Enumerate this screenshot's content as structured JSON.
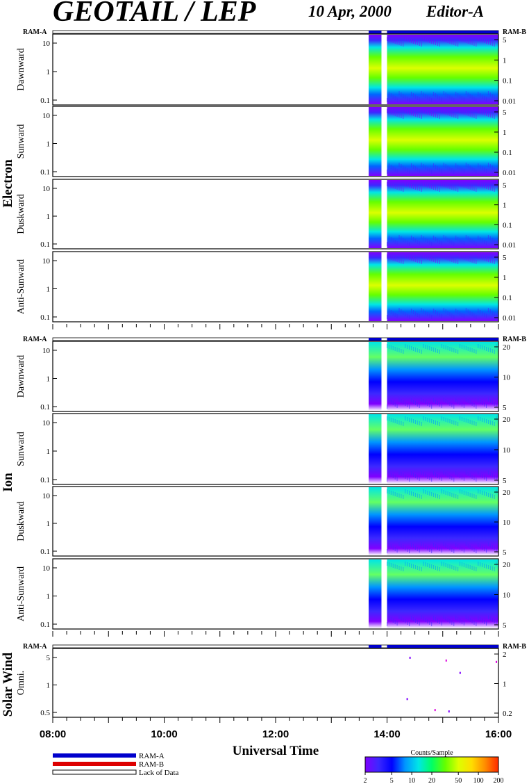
{
  "header": {
    "title": "GEOTAIL / LEP",
    "date": "10 Apr, 2000",
    "editor": "Editor-A"
  },
  "legend": {
    "ram_a": "RAM-A",
    "ram_b": "RAM-B",
    "lack": "Lack of Data",
    "colorbar_title": "Counts/Sample",
    "colorbar_ticks": [
      "2",
      "5",
      "10",
      "20",
      "50",
      "100",
      "200"
    ]
  },
  "colors": {
    "ram_a": "#0000cc",
    "ram_b": "#dd0000",
    "spectrogram_scale": [
      "#7f00ff",
      "#3c28ff",
      "#0000ff",
      "#0096ff",
      "#00e6e6",
      "#00ff64",
      "#64ff00",
      "#dcff00",
      "#ffdc00",
      "#ff8c00",
      "#ff2800"
    ]
  },
  "chart_data": {
    "type": "heatmap",
    "xlabel": "Universal Time",
    "x_ticks": [
      "08:00",
      "10:00",
      "12:00",
      "14:00",
      "16:00"
    ],
    "x_range_hours": [
      8,
      16
    ],
    "data_coverage_hours": [
      [
        13.67,
        13.9
      ],
      [
        14.0,
        16.0
      ]
    ],
    "ram_bar_labels": {
      "left": "RAM-A",
      "right": "RAM-B"
    },
    "groups": [
      {
        "label": "Electron",
        "panels": [
          {
            "label": "Dawnward",
            "left_ticks": [
              "10",
              "1",
              "0.1"
            ],
            "right_ticks": [
              "5",
              "1",
              "0.1",
              "0.01"
            ]
          },
          {
            "label": "Sunward",
            "left_ticks": [
              "10",
              "1",
              "0.1"
            ],
            "right_ticks": [
              "5",
              "1",
              "0.1",
              "0.01"
            ]
          },
          {
            "label": "Duskward",
            "left_ticks": [
              "10",
              "1",
              "0.1"
            ],
            "right_ticks": [
              "5",
              "1",
              "0.1",
              "0.01"
            ]
          },
          {
            "label": "Anti-Sunward",
            "left_ticks": [
              "10",
              "1",
              "0.1"
            ],
            "right_ticks": [
              "5",
              "1",
              "0.1",
              "0.01"
            ]
          }
        ]
      },
      {
        "label": "Ion",
        "panels": [
          {
            "label": "Dawnward",
            "left_ticks": [
              "10",
              "1",
              "0.1"
            ],
            "right_ticks": [
              "20",
              "10",
              "5"
            ]
          },
          {
            "label": "Sunward",
            "left_ticks": [
              "10",
              "1",
              "0.1"
            ],
            "right_ticks": [
              "20",
              "10",
              "5"
            ]
          },
          {
            "label": "Duskward",
            "left_ticks": [
              "10",
              "1",
              "0.1"
            ],
            "right_ticks": [
              "20",
              "10",
              "5"
            ]
          },
          {
            "label": "Anti-Sunward",
            "left_ticks": [
              "10",
              "1",
              "0.1"
            ],
            "right_ticks": [
              "20",
              "10",
              "5"
            ]
          }
        ]
      },
      {
        "label": "Solar Wind",
        "panels": [
          {
            "label": "Omni.",
            "left_ticks": [
              "5",
              "1",
              "0.5"
            ],
            "right_ticks": [
              "2",
              "1",
              "0.2"
            ]
          }
        ]
      }
    ],
    "colorbar": {
      "label": "Counts/Sample",
      "ticks": [
        2,
        5,
        10,
        20,
        50,
        100,
        200
      ],
      "scale": "log"
    }
  }
}
